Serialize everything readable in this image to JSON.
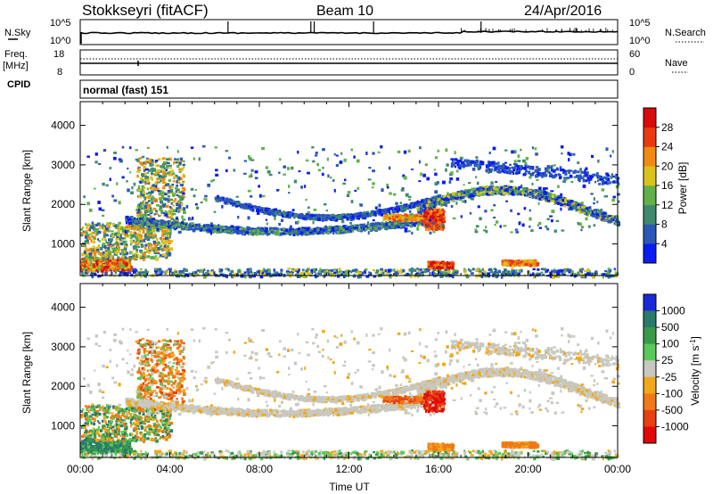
{
  "header": {
    "station": "Stokkseyri (fitACF)",
    "beam": "Beam 10",
    "date": "24/Apr/2016"
  },
  "noise_panel": {
    "left_label": "N.Sky",
    "right_label": "N.Search",
    "left_ticks": [
      "10^5",
      "10^0"
    ],
    "right_ticks": [
      "10^5",
      "10^0"
    ]
  },
  "freq_panel": {
    "left_label_1": "Freq.",
    "left_label_2": "[MHz]",
    "right_label": "Nave",
    "left_ticks": [
      "18",
      "8"
    ],
    "right_ticks": [
      "60",
      "0"
    ]
  },
  "cpid": {
    "label": "CPID",
    "value": "normal (fast) 151"
  },
  "chart_data": [
    {
      "type": "heatmap",
      "name": "power",
      "ylabel": "Slant Range [km]",
      "xlabel": "",
      "yticks": [
        "1000",
        "2000",
        "3000",
        "4000"
      ],
      "ylim": [
        200,
        4600
      ],
      "xlim": [
        "00:00",
        "24:00"
      ],
      "colorbar": {
        "label": "Power [dB]",
        "ticks": [
          "4",
          "8",
          "12",
          "16",
          "20",
          "24",
          "28"
        ],
        "colors": [
          "#0a1cf0",
          "#2b58b8",
          "#3f8a6e",
          "#62b04a",
          "#d9c21a",
          "#f08a10",
          "#e83a10",
          "#d80a0a"
        ]
      }
    },
    {
      "type": "heatmap",
      "name": "velocity",
      "ylabel": "Slant Range [km]",
      "xlabel": "Time UT",
      "yticks": [
        "1000",
        "2000",
        "3000",
        "4000"
      ],
      "xticks": [
        "00:00",
        "04:00",
        "08:00",
        "12:00",
        "16:00",
        "20:00",
        "00:00"
      ],
      "ylim": [
        200,
        4600
      ],
      "xlim": [
        "00:00",
        "24:00"
      ],
      "colorbar": {
        "label": "Velocity [m s^-1]",
        "ticks": [
          "1000",
          "500",
          "100",
          "25",
          "-25",
          "-100",
          "-500",
          "-1000"
        ],
        "colors": [
          "#1a2ad8",
          "#2a7a6a",
          "#3a9a4a",
          "#5ac85a",
          "#c8c8c0",
          "#f0a818",
          "#f07818",
          "#e84010",
          "#e00a0a"
        ]
      }
    }
  ]
}
